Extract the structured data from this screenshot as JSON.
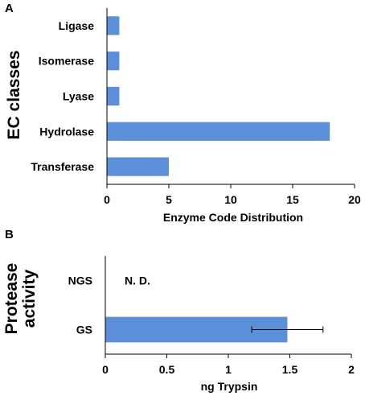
{
  "bar_color": "#5b8fd9",
  "chart_data": [
    {
      "type": "bar",
      "orientation": "horizontal",
      "panel_label": "A",
      "categories": [
        "Ligase",
        "Isomerase",
        "Lyase",
        "Hydrolase",
        "Transferase"
      ],
      "values": [
        1,
        1,
        1,
        18,
        5
      ],
      "xlabel": "Enzyme Code Distribution",
      "ylabel": "EC classes",
      "xlim": [
        0,
        20
      ],
      "xticks": [
        "0",
        "5",
        "10",
        "15",
        "20"
      ],
      "grid": false
    },
    {
      "type": "bar",
      "orientation": "horizontal",
      "panel_label": "B",
      "categories": [
        "NGS",
        "GS"
      ],
      "values": [
        null,
        1.48
      ],
      "error": [
        null,
        0.29
      ],
      "annotations": [
        {
          "category": "NGS",
          "text": "N. D."
        }
      ],
      "xlabel": "ng Trypsin",
      "ylabel_lines": [
        "Protease",
        "activity"
      ],
      "xlim": [
        0,
        2
      ],
      "xticks": [
        "0",
        "0.5",
        "1",
        "1.5",
        "2"
      ],
      "grid": false
    }
  ]
}
